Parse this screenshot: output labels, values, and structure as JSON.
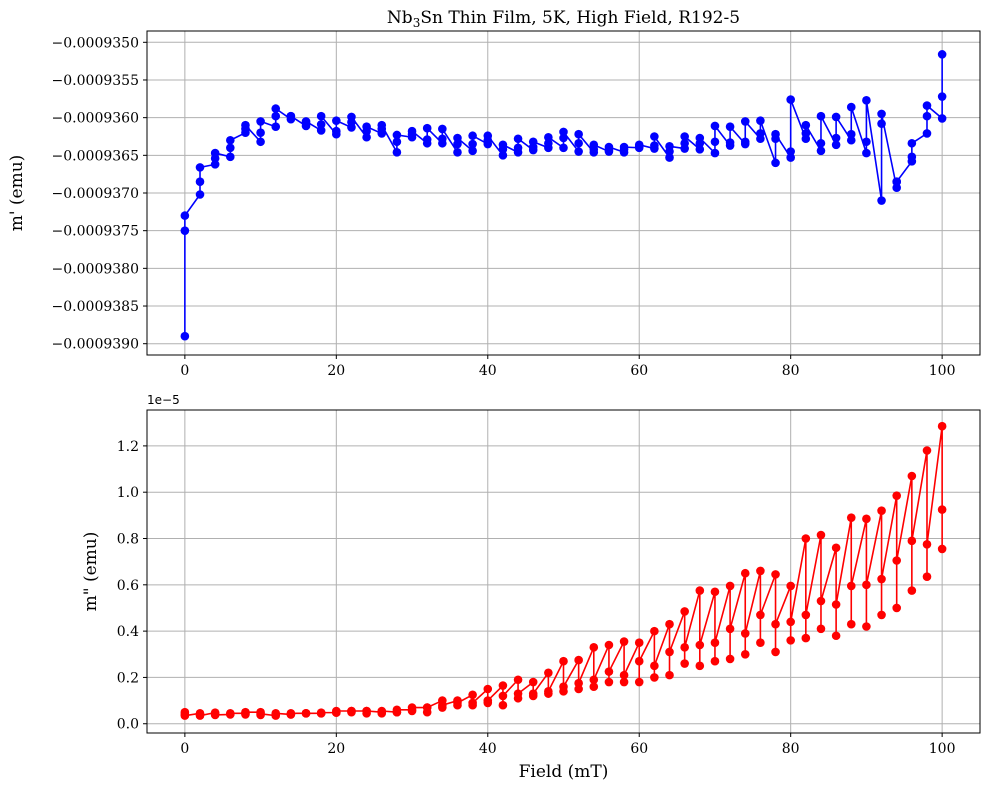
{
  "chart_data": [
    {
      "type": "line",
      "title_html": "Nb<tspan dy=\"4\" font-size=\"12\">3</tspan><tspan dy=\"-4\">Sn Thin Film, 5K, High Field, R192-5</tspan>",
      "title": "Nb3Sn Thin Film, 5K, High Field, R192-5",
      "xlabel": "",
      "ylabel": "m' (emu)",
      "xlim": [
        -5,
        105
      ],
      "ylim": [
        -0.00093915,
        -0.00093485
      ],
      "xticks": [
        0,
        20,
        40,
        60,
        80,
        100
      ],
      "xtick_labels": [
        "0",
        "20",
        "40",
        "60",
        "80",
        "100"
      ],
      "yticks": [
        -0.000939,
        -0.0009385,
        -0.000938,
        -0.0009375,
        -0.000937,
        -0.0009365,
        -0.000936,
        -0.0009355,
        -0.000935
      ],
      "ytick_labels": [
        "−0.0009390",
        "−0.0009385",
        "−0.0009380",
        "−0.0009375",
        "−0.0009370",
        "−0.0009365",
        "−0.0009360",
        "−0.0009355",
        "−0.0009350"
      ],
      "grid": true,
      "color": "#0000ff",
      "series": [
        {
          "x": [
            0,
            0,
            0,
            2,
            2,
            2,
            4,
            4,
            4,
            6,
            6,
            6,
            8,
            8,
            8,
            10,
            10,
            10,
            12,
            12,
            12,
            14,
            14,
            14,
            16,
            16,
            16,
            18,
            18,
            18,
            20,
            20,
            20,
            22,
            22,
            22,
            24,
            24,
            24,
            26,
            26,
            26,
            28,
            28,
            28,
            30,
            30,
            30,
            32,
            32,
            32,
            34,
            34,
            34,
            36,
            36,
            36,
            38,
            38,
            38,
            40,
            40,
            40,
            42,
            42,
            42,
            44,
            44,
            44,
            46,
            46,
            46,
            48,
            48,
            48,
            50,
            50,
            50,
            52,
            52,
            52,
            54,
            54,
            54,
            56,
            56,
            56,
            58,
            58,
            58,
            60,
            60,
            60,
            62,
            62,
            62,
            64,
            64,
            64,
            66,
            66,
            66,
            68,
            68,
            68,
            70,
            70,
            70,
            72,
            72,
            72,
            74,
            74,
            74,
            76,
            76,
            76,
            78,
            78,
            78,
            80,
            80,
            80,
            82,
            82,
            82,
            84,
            84,
            84,
            86,
            86,
            86,
            88,
            88,
            88,
            90,
            90,
            90,
            92,
            92,
            92,
            94,
            94,
            94,
            96,
            96,
            96,
            98,
            98,
            98,
            100,
            100,
            100
          ],
          "y": [
            -0.0009389,
            -0.0009375,
            -0.0009373,
            -0.00093702,
            -0.00093685,
            -0.00093666,
            -0.00093662,
            -0.00093654,
            -0.00093647,
            -0.00093652,
            -0.0009364,
            -0.0009363,
            -0.0009362,
            -0.00093615,
            -0.0009361,
            -0.00093632,
            -0.0009362,
            -0.00093605,
            -0.00093612,
            -0.00093598,
            -0.00093588,
            -0.00093602,
            -0.00093598,
            -0.00093598,
            -0.00093611,
            -0.00093607,
            -0.00093605,
            -0.00093617,
            -0.00093609,
            -0.00093598,
            -0.00093622,
            -0.00093618,
            -0.00093604,
            -0.00093613,
            -0.00093606,
            -0.00093599,
            -0.00093626,
            -0.00093618,
            -0.00093612,
            -0.00093621,
            -0.00093615,
            -0.0009361,
            -0.00093646,
            -0.00093632,
            -0.00093623,
            -0.00093626,
            -0.00093622,
            -0.00093618,
            -0.00093634,
            -0.00093629,
            -0.00093614,
            -0.00093634,
            -0.00093628,
            -0.00093615,
            -0.00093646,
            -0.00093635,
            -0.00093627,
            -0.00093644,
            -0.00093635,
            -0.00093624,
            -0.00093635,
            -0.0009363,
            -0.00093624,
            -0.0009365,
            -0.00093642,
            -0.00093636,
            -0.00093646,
            -0.0009364,
            -0.00093628,
            -0.00093643,
            -0.00093639,
            -0.00093632,
            -0.0009364,
            -0.00093634,
            -0.00093626,
            -0.0009364,
            -0.00093627,
            -0.00093619,
            -0.00093645,
            -0.00093634,
            -0.00093622,
            -0.00093646,
            -0.00093642,
            -0.00093636,
            -0.00093645,
            -0.00093643,
            -0.00093639,
            -0.00093646,
            -0.00093642,
            -0.00093639,
            -0.0009364,
            -0.00093638,
            -0.00093636,
            -0.00093641,
            -0.00093637,
            -0.00093625,
            -0.00093653,
            -0.00093645,
            -0.00093638,
            -0.00093641,
            -0.00093634,
            -0.00093625,
            -0.00093642,
            -0.00093634,
            -0.00093627,
            -0.00093647,
            -0.00093632,
            -0.00093611,
            -0.00093637,
            -0.00093633,
            -0.00093612,
            -0.00093635,
            -0.00093632,
            -0.00093605,
            -0.00093628,
            -0.00093621,
            -0.00093604,
            -0.0009366,
            -0.00093628,
            -0.00093622,
            -0.00093653,
            -0.00093645,
            -0.00093576,
            -0.00093628,
            -0.00093621,
            -0.0009361,
            -0.00093644,
            -0.00093634,
            -0.00093598,
            -0.00093636,
            -0.00093627,
            -0.00093599,
            -0.0009363,
            -0.00093622,
            -0.00093586,
            -0.00093647,
            -0.00093632,
            -0.00093577,
            -0.0009371,
            -0.00093608,
            -0.00093595,
            -0.00093693,
            -0.00093685,
            -0.00093685,
            -0.00093658,
            -0.00093652,
            -0.00093634,
            -0.00093621,
            -0.00093598,
            -0.00093584,
            -0.00093601,
            -0.00093572,
            -0.00093516
          ]
        }
      ]
    },
    {
      "type": "line",
      "title": "",
      "xlabel": "Field (mT)",
      "ylabel": "m\" (emu)",
      "offset_label": "1e−5",
      "xlim": [
        -5,
        105
      ],
      "ylim": [
        -0.04,
        1.355
      ],
      "xticks": [
        0,
        20,
        40,
        60,
        80,
        100
      ],
      "xtick_labels": [
        "0",
        "20",
        "40",
        "60",
        "80",
        "100"
      ],
      "yticks": [
        0.0,
        0.2,
        0.4,
        0.6,
        0.8,
        1.0,
        1.2
      ],
      "ytick_labels": [
        "0.0",
        "0.2",
        "0.4",
        "0.6",
        "0.8",
        "1.0",
        "1.2"
      ],
      "grid": true,
      "color": "#ff0000",
      "series": [
        {
          "x": [
            0,
            0,
            0,
            2,
            2,
            2,
            4,
            4,
            4,
            6,
            6,
            6,
            8,
            8,
            8,
            10,
            10,
            10,
            12,
            12,
            12,
            14,
            14,
            14,
            16,
            16,
            16,
            18,
            18,
            18,
            20,
            20,
            20,
            22,
            22,
            22,
            24,
            24,
            24,
            26,
            26,
            26,
            28,
            28,
            28,
            30,
            30,
            30,
            32,
            32,
            32,
            34,
            34,
            34,
            36,
            36,
            36,
            38,
            38,
            38,
            40,
            40,
            40,
            42,
            42,
            42,
            44,
            44,
            44,
            46,
            46,
            46,
            48,
            48,
            48,
            50,
            50,
            50,
            52,
            52,
            52,
            54,
            54,
            54,
            56,
            56,
            56,
            58,
            58,
            58,
            60,
            60,
            60,
            62,
            62,
            62,
            64,
            64,
            64,
            66,
            66,
            66,
            68,
            68,
            68,
            70,
            70,
            70,
            72,
            72,
            72,
            74,
            74,
            74,
            76,
            76,
            76,
            78,
            78,
            78,
            80,
            80,
            80,
            82,
            82,
            82,
            84,
            84,
            84,
            86,
            86,
            86,
            88,
            88,
            88,
            90,
            90,
            90,
            92,
            92,
            92,
            94,
            94,
            94,
            96,
            96,
            96,
            98,
            98,
            98,
            100,
            100,
            100
          ],
          "y": [
            0.05,
            0.04,
            0.035,
            0.045,
            0.04,
            0.035,
            0.048,
            0.04,
            0.038,
            0.04,
            0.042,
            0.045,
            0.045,
            0.04,
            0.05,
            0.05,
            0.038,
            0.043,
            0.035,
            0.04,
            0.045,
            0.04,
            0.04,
            0.045,
            0.045,
            0.045,
            0.045,
            0.045,
            0.045,
            0.048,
            0.048,
            0.048,
            0.055,
            0.055,
            0.05,
            0.055,
            0.055,
            0.045,
            0.055,
            0.05,
            0.045,
            0.055,
            0.05,
            0.05,
            0.06,
            0.06,
            0.055,
            0.07,
            0.07,
            0.05,
            0.07,
            0.1,
            0.07,
            0.08,
            0.1,
            0.08,
            0.09,
            0.125,
            0.08,
            0.09,
            0.15,
            0.09,
            0.1,
            0.165,
            0.08,
            0.12,
            0.19,
            0.11,
            0.13,
            0.18,
            0.12,
            0.13,
            0.22,
            0.13,
            0.14,
            0.27,
            0.14,
            0.16,
            0.275,
            0.15,
            0.175,
            0.33,
            0.16,
            0.19,
            0.34,
            0.18,
            0.225,
            0.355,
            0.18,
            0.21,
            0.35,
            0.18,
            0.27,
            0.4,
            0.2,
            0.25,
            0.43,
            0.21,
            0.31,
            0.485,
            0.26,
            0.33,
            0.575,
            0.25,
            0.34,
            0.57,
            0.27,
            0.35,
            0.595,
            0.28,
            0.41,
            0.65,
            0.3,
            0.39,
            0.66,
            0.35,
            0.47,
            0.645,
            0.31,
            0.43,
            0.595,
            0.36,
            0.44,
            0.8,
            0.37,
            0.47,
            0.815,
            0.41,
            0.53,
            0.76,
            0.38,
            0.515,
            0.89,
            0.43,
            0.595,
            0.885,
            0.42,
            0.6,
            0.92,
            0.47,
            0.625,
            0.985,
            0.5,
            0.705,
            1.07,
            0.575,
            0.79,
            1.18,
            0.635,
            0.775,
            1.285,
            0.755,
            0.925
          ]
        }
      ]
    }
  ]
}
